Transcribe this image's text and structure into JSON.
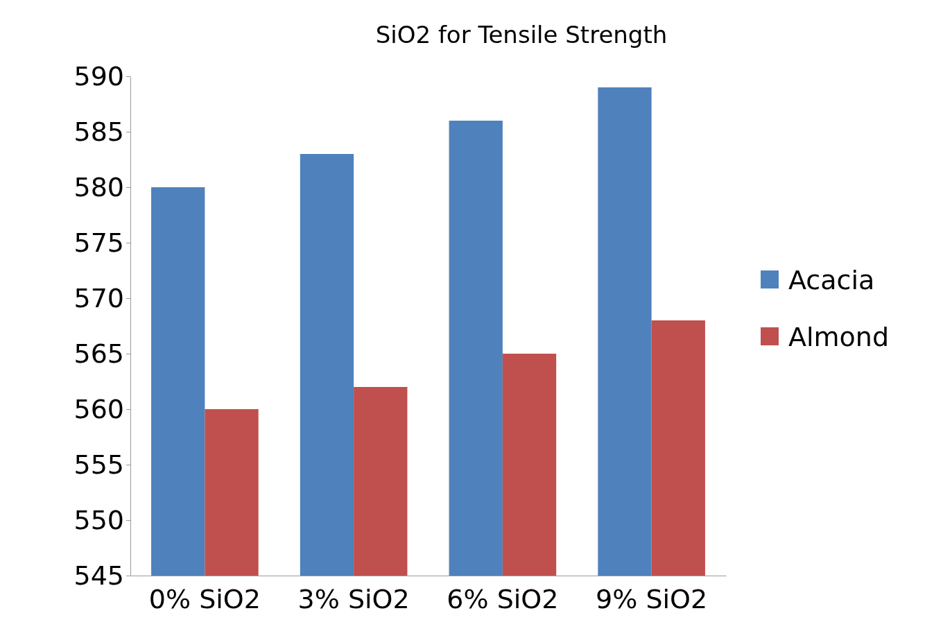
{
  "chart_data": {
    "type": "bar",
    "title": "SiO2 for Tensile Strength",
    "categories": [
      "0% SiO2",
      "3% SiO2",
      "6% SiO2",
      "9% SiO2"
    ],
    "series": [
      {
        "name": "Acacia",
        "color": "#4f81bd",
        "values": [
          580,
          583,
          586,
          589
        ]
      },
      {
        "name": "Almond",
        "color": "#c0504d",
        "values": [
          560,
          562,
          565,
          568
        ]
      }
    ],
    "ylim": [
      545,
      590
    ],
    "yticks": [
      545,
      550,
      555,
      560,
      565,
      570,
      575,
      580,
      585,
      590
    ],
    "grid": false,
    "legend": "right"
  }
}
